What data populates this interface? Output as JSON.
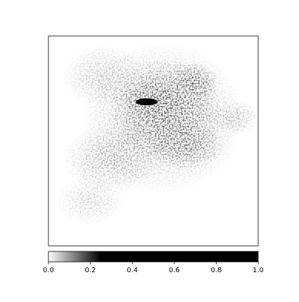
{
  "chart_data": {
    "type": "heatmap",
    "colorbar": {
      "lim": [
        0,
        1
      ],
      "ticks": [
        {
          "value": 0,
          "label": "0.0"
        },
        {
          "value": 0.2,
          "label": "0.2"
        },
        {
          "value": 0.4,
          "label": "0.4"
        },
        {
          "value": 0.6,
          "label": "0.6"
        },
        {
          "value": 0.8,
          "label": "0.8"
        },
        {
          "value": 1,
          "label": "1.0"
        }
      ],
      "color_stops": [
        {
          "value": 0,
          "color": "#ffffff"
        },
        {
          "value": 0.25,
          "color": "#000000"
        },
        {
          "value": 1,
          "color": "#000000"
        }
      ]
    }
  }
}
